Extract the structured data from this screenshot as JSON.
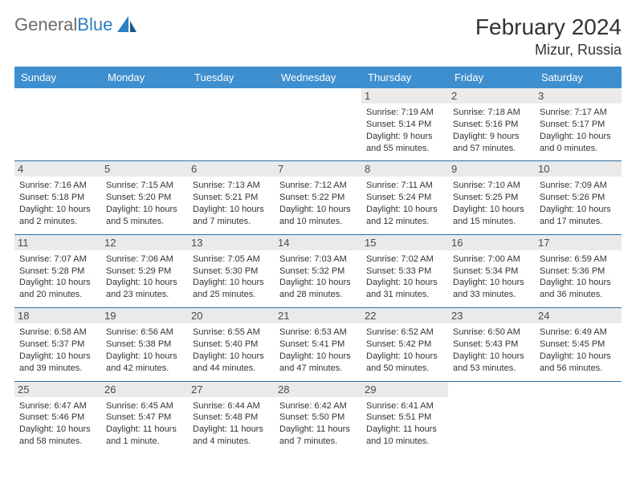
{
  "logo": {
    "text_general": "General",
    "text_blue": "Blue"
  },
  "title": "February 2024",
  "location": "Mizur, Russia",
  "colors": {
    "header_bg": "#3e8fcf",
    "header_text": "#ffffff",
    "day_bg": "#eaeaea",
    "border": "#2d6fa3",
    "text": "#333333",
    "logo_gray": "#6b6b6b",
    "logo_blue": "#2d7fc1"
  },
  "day_headers": [
    "Sunday",
    "Monday",
    "Tuesday",
    "Wednesday",
    "Thursday",
    "Friday",
    "Saturday"
  ],
  "weeks": [
    [
      null,
      null,
      null,
      null,
      {
        "num": "1",
        "sunrise": "7:19 AM",
        "sunset": "5:14 PM",
        "daylight": "9 hours and 55 minutes."
      },
      {
        "num": "2",
        "sunrise": "7:18 AM",
        "sunset": "5:16 PM",
        "daylight": "9 hours and 57 minutes."
      },
      {
        "num": "3",
        "sunrise": "7:17 AM",
        "sunset": "5:17 PM",
        "daylight": "10 hours and 0 minutes."
      }
    ],
    [
      {
        "num": "4",
        "sunrise": "7:16 AM",
        "sunset": "5:18 PM",
        "daylight": "10 hours and 2 minutes."
      },
      {
        "num": "5",
        "sunrise": "7:15 AM",
        "sunset": "5:20 PM",
        "daylight": "10 hours and 5 minutes."
      },
      {
        "num": "6",
        "sunrise": "7:13 AM",
        "sunset": "5:21 PM",
        "daylight": "10 hours and 7 minutes."
      },
      {
        "num": "7",
        "sunrise": "7:12 AM",
        "sunset": "5:22 PM",
        "daylight": "10 hours and 10 minutes."
      },
      {
        "num": "8",
        "sunrise": "7:11 AM",
        "sunset": "5:24 PM",
        "daylight": "10 hours and 12 minutes."
      },
      {
        "num": "9",
        "sunrise": "7:10 AM",
        "sunset": "5:25 PM",
        "daylight": "10 hours and 15 minutes."
      },
      {
        "num": "10",
        "sunrise": "7:09 AM",
        "sunset": "5:26 PM",
        "daylight": "10 hours and 17 minutes."
      }
    ],
    [
      {
        "num": "11",
        "sunrise": "7:07 AM",
        "sunset": "5:28 PM",
        "daylight": "10 hours and 20 minutes."
      },
      {
        "num": "12",
        "sunrise": "7:06 AM",
        "sunset": "5:29 PM",
        "daylight": "10 hours and 23 minutes."
      },
      {
        "num": "13",
        "sunrise": "7:05 AM",
        "sunset": "5:30 PM",
        "daylight": "10 hours and 25 minutes."
      },
      {
        "num": "14",
        "sunrise": "7:03 AM",
        "sunset": "5:32 PM",
        "daylight": "10 hours and 28 minutes."
      },
      {
        "num": "15",
        "sunrise": "7:02 AM",
        "sunset": "5:33 PM",
        "daylight": "10 hours and 31 minutes."
      },
      {
        "num": "16",
        "sunrise": "7:00 AM",
        "sunset": "5:34 PM",
        "daylight": "10 hours and 33 minutes."
      },
      {
        "num": "17",
        "sunrise": "6:59 AM",
        "sunset": "5:36 PM",
        "daylight": "10 hours and 36 minutes."
      }
    ],
    [
      {
        "num": "18",
        "sunrise": "6:58 AM",
        "sunset": "5:37 PM",
        "daylight": "10 hours and 39 minutes."
      },
      {
        "num": "19",
        "sunrise": "6:56 AM",
        "sunset": "5:38 PM",
        "daylight": "10 hours and 42 minutes."
      },
      {
        "num": "20",
        "sunrise": "6:55 AM",
        "sunset": "5:40 PM",
        "daylight": "10 hours and 44 minutes."
      },
      {
        "num": "21",
        "sunrise": "6:53 AM",
        "sunset": "5:41 PM",
        "daylight": "10 hours and 47 minutes."
      },
      {
        "num": "22",
        "sunrise": "6:52 AM",
        "sunset": "5:42 PM",
        "daylight": "10 hours and 50 minutes."
      },
      {
        "num": "23",
        "sunrise": "6:50 AM",
        "sunset": "5:43 PM",
        "daylight": "10 hours and 53 minutes."
      },
      {
        "num": "24",
        "sunrise": "6:49 AM",
        "sunset": "5:45 PM",
        "daylight": "10 hours and 56 minutes."
      }
    ],
    [
      {
        "num": "25",
        "sunrise": "6:47 AM",
        "sunset": "5:46 PM",
        "daylight": "10 hours and 58 minutes."
      },
      {
        "num": "26",
        "sunrise": "6:45 AM",
        "sunset": "5:47 PM",
        "daylight": "11 hours and 1 minute."
      },
      {
        "num": "27",
        "sunrise": "6:44 AM",
        "sunset": "5:48 PM",
        "daylight": "11 hours and 4 minutes."
      },
      {
        "num": "28",
        "sunrise": "6:42 AM",
        "sunset": "5:50 PM",
        "daylight": "11 hours and 7 minutes."
      },
      {
        "num": "29",
        "sunrise": "6:41 AM",
        "sunset": "5:51 PM",
        "daylight": "11 hours and 10 minutes."
      },
      null,
      null
    ]
  ],
  "labels": {
    "sunrise": "Sunrise:",
    "sunset": "Sunset:",
    "daylight": "Daylight:"
  }
}
